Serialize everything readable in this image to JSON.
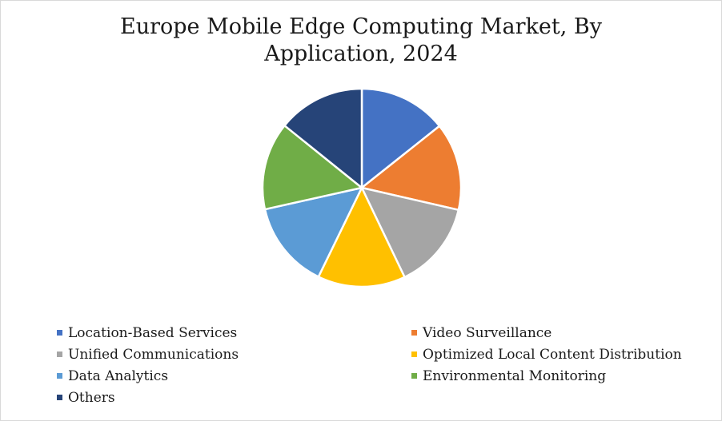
{
  "chart_data": {
    "type": "pie",
    "title_lines": [
      "Europe Mobile Edge Computing Market, By",
      "Application, 2024"
    ],
    "legend_position": "bottom",
    "slices": [
      {
        "label": "Location-Based Services",
        "value": 14.3,
        "color": "#4472C4"
      },
      {
        "label": "Video Surveillance",
        "value": 14.3,
        "color": "#ED7D31"
      },
      {
        "label": "Unified Communications",
        "value": 14.3,
        "color": "#A5A5A5"
      },
      {
        "label": "Optimized Local Content Distribution",
        "value": 14.3,
        "color": "#FFC000"
      },
      {
        "label": "Data Analytics",
        "value": 14.3,
        "color": "#5B9BD5"
      },
      {
        "label": "Environmental Monitoring",
        "value": 14.3,
        "color": "#70AD47"
      },
      {
        "label": "Others",
        "value": 14.2,
        "color": "#264478"
      }
    ]
  }
}
